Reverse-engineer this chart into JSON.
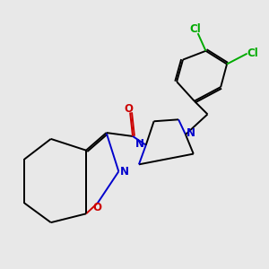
{
  "bg_color": "#e8e8e8",
  "bond_color": "#000000",
  "N_color": "#0000cc",
  "O_color": "#cc0000",
  "Cl_color": "#00aa00",
  "line_width": 1.4,
  "font_size": 8.5,
  "fig_w": 3.0,
  "fig_h": 3.0,
  "dpi": 100,
  "xlim": [
    0,
    10
  ],
  "ylim": [
    0,
    10
  ]
}
